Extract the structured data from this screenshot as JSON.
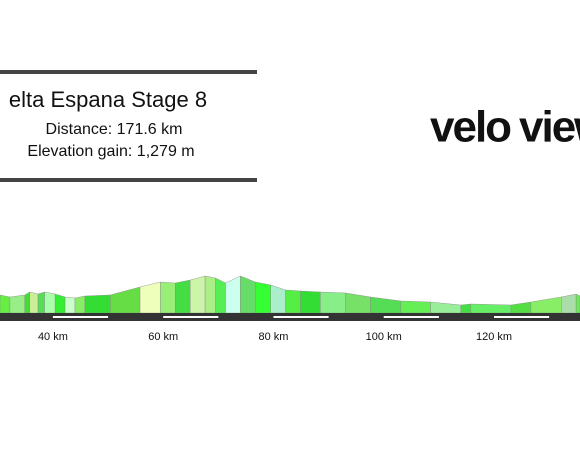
{
  "chart_data": {
    "type": "profile",
    "title": "elta Espana Stage 8",
    "distance": "Distance: 171.6 km",
    "elevation_gain": "Elevation gain: 1,279 m",
    "logo": [
      "velo",
      "view"
    ],
    "logo_colors": [
      "#111111",
      "#e8112d"
    ],
    "x": [
      30.4,
      32.2,
      34.9,
      35.8,
      37.3,
      38.5,
      40.4,
      42.2,
      44.0,
      45.8,
      50.4,
      55.8,
      59.5,
      62.2,
      64.9,
      67.6,
      69.5,
      71.3,
      74.0,
      76.7,
      79.5,
      82.2,
      84.9,
      88.5,
      93.1,
      97.6,
      103.1,
      108.5,
      114.0,
      115.8,
      123.1,
      126.7,
      132.2,
      134.9,
      135.6
    ],
    "values": [
      360,
      320,
      360,
      420,
      380,
      420,
      380,
      320,
      300,
      340,
      360,
      520,
      620,
      600,
      660,
      740,
      700,
      600,
      740,
      620,
      560,
      460,
      440,
      420,
      400,
      320,
      240,
      220,
      160,
      180,
      160,
      220,
      320,
      380,
      340
    ],
    "segment_colors": [
      "#66ee44",
      "#99ee88",
      "#44dd33",
      "#ccee99",
      "#55dd55",
      "#aaffaa",
      "#33ee33",
      "#ccffcc",
      "#88ee66",
      "#33dd33",
      "#66dd44",
      "#eeffbb",
      "#99ee77",
      "#44dd44",
      "#ccf5aa",
      "#aaee88",
      "#55ee55",
      "#ccffee",
      "#66dd66",
      "#33ff33",
      "#aaeecc",
      "#55ee44",
      "#33dd33",
      "#88ee88",
      "#77e066",
      "#55dd55",
      "#66ee55",
      "#99ee99",
      "#44dd44",
      "#66ee66",
      "#55dd44",
      "#88ee66",
      "#aaddaa",
      "#66ee55"
    ],
    "xlim": [
      30.4,
      135.6
    ],
    "ylim": [
      0,
      1000
    ],
    "xticks": [
      {
        "value": 40,
        "label": "40 km"
      },
      {
        "value": 60,
        "label": "60 km"
      },
      {
        "value": 80,
        "label": "80 km"
      },
      {
        "value": 100,
        "label": "100 km"
      },
      {
        "value": 120,
        "label": "120 km"
      }
    ]
  }
}
